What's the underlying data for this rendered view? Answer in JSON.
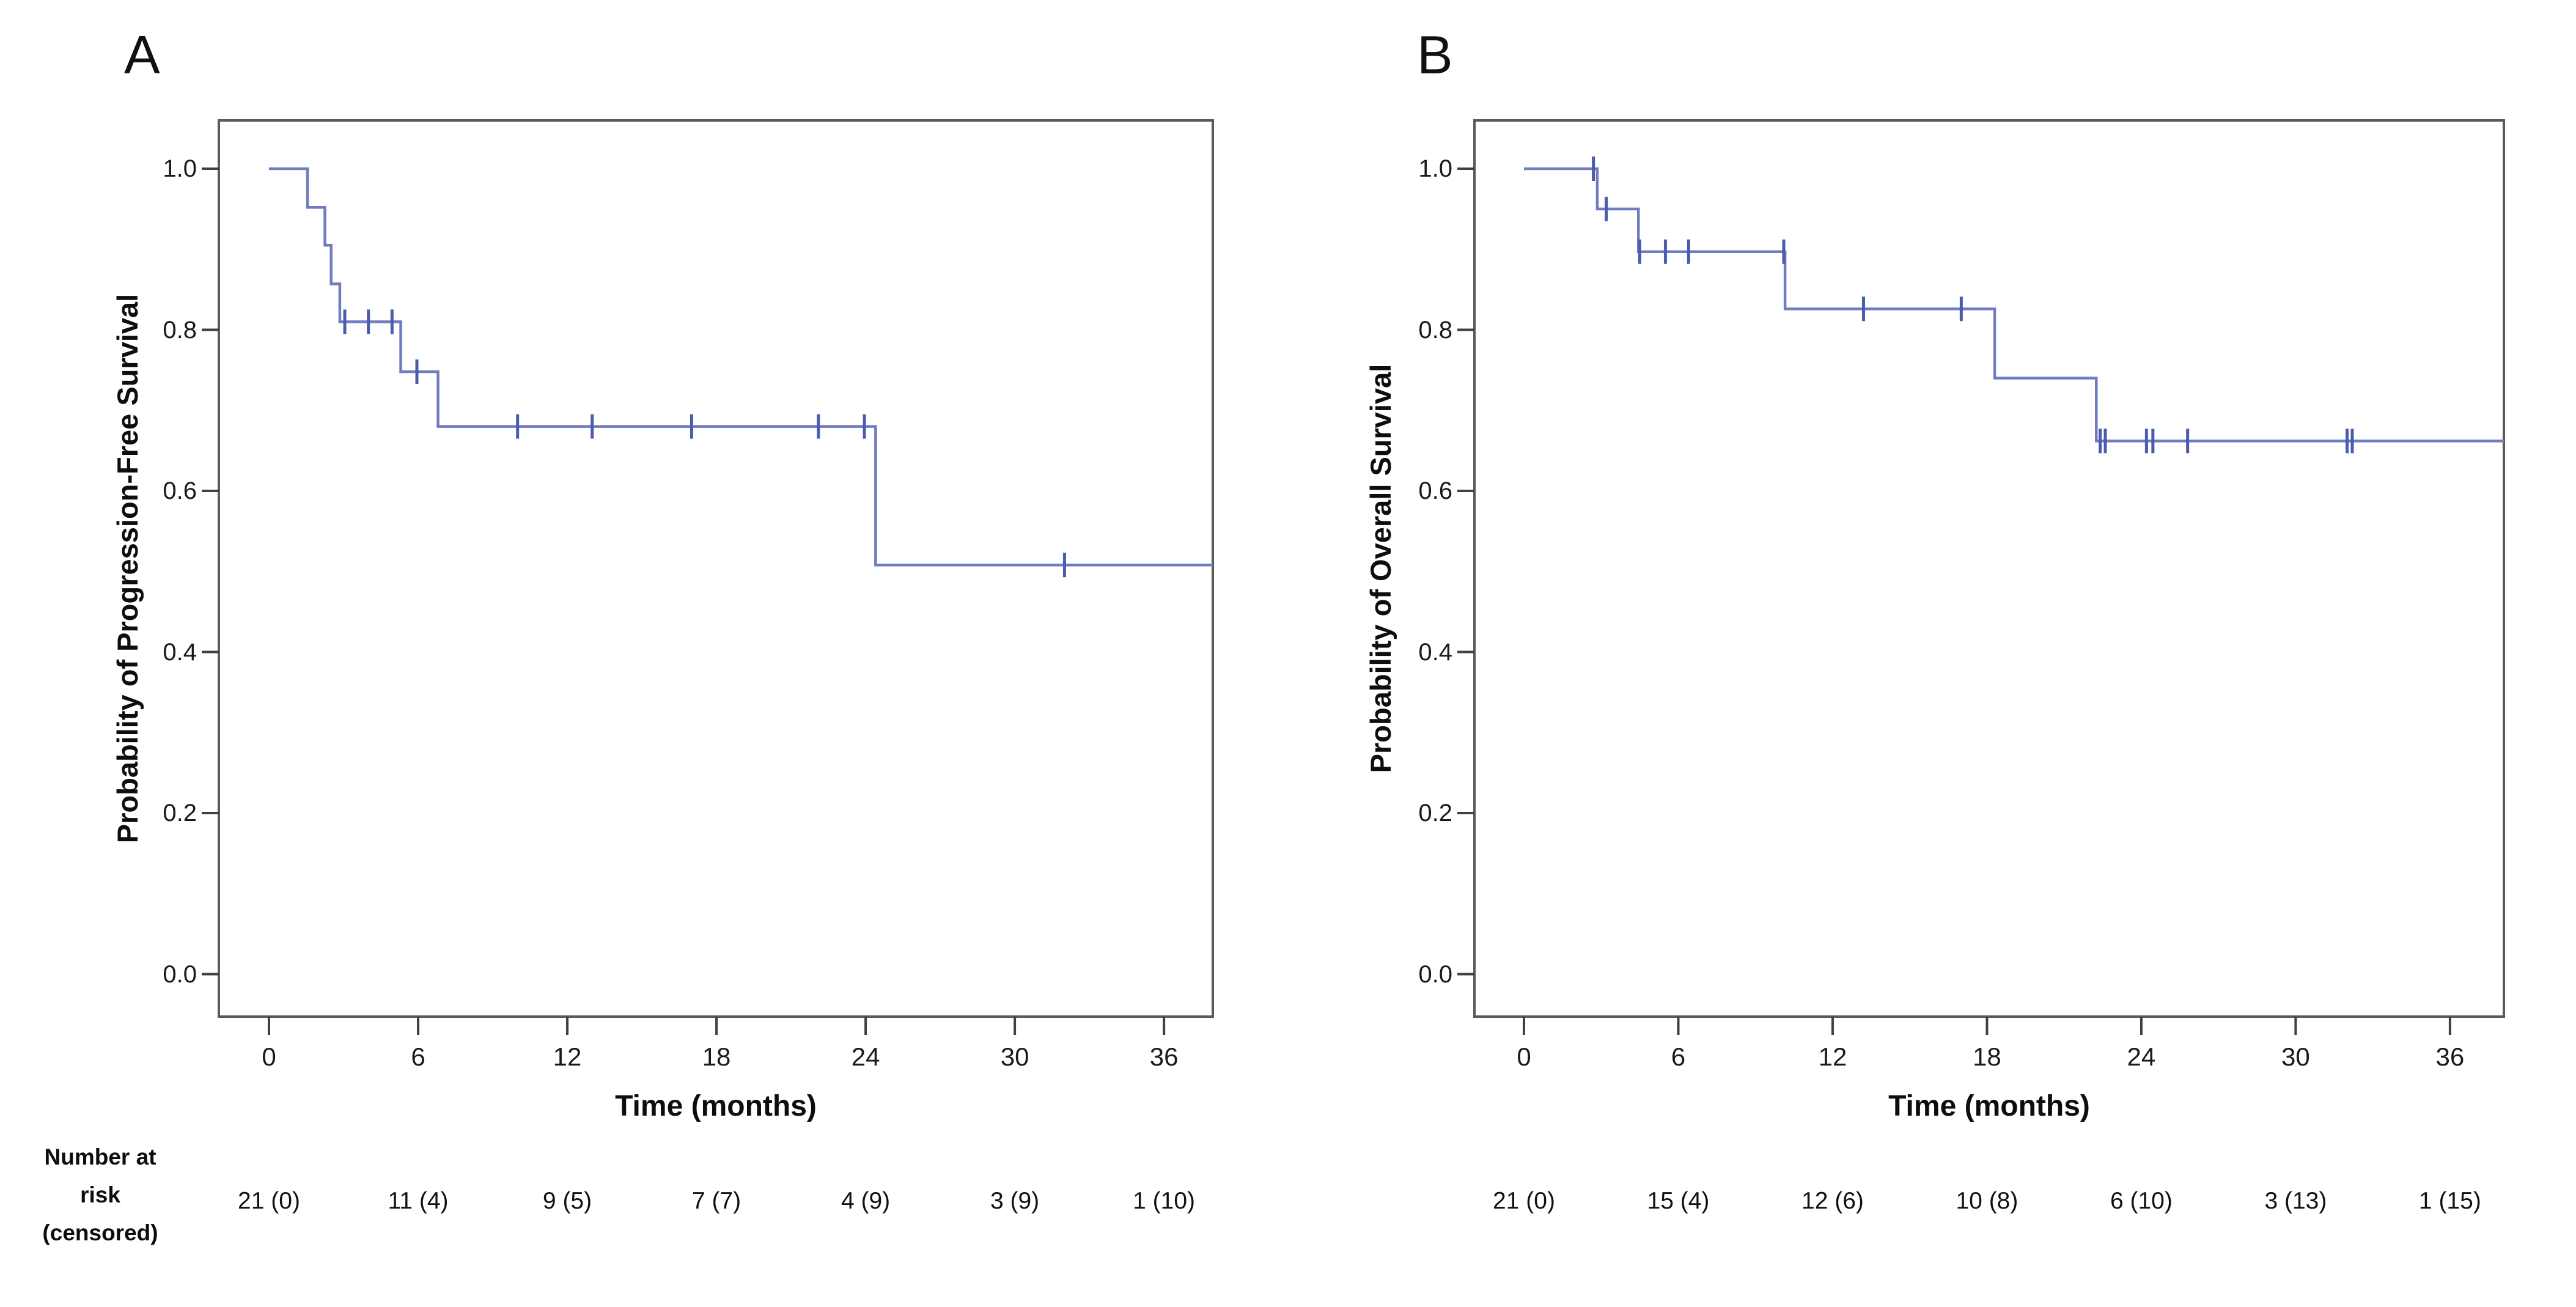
{
  "figure": {
    "risk_label_lines": [
      "Number at",
      "risk",
      "(censored)"
    ],
    "panels": [
      {
        "label": "A",
        "y_axis_title": "Probability of Progression-Free Survival",
        "x_axis_title": "Time (months)",
        "y_tick_labels": [
          "1.0",
          "0.8",
          "0.6",
          "0.4",
          "0.2",
          "0.0"
        ],
        "x_tick_labels": [
          "0",
          "6",
          "12",
          "18",
          "24",
          "30",
          "36"
        ],
        "number_at_risk_labels": [
          "21 (0)",
          "11 (4)",
          "9 (5)",
          "7 (7)",
          "4 (9)",
          "3 (9)",
          "1 (10)"
        ]
      },
      {
        "label": "B",
        "y_axis_title": "Probability of Overall Survival",
        "x_axis_title": "Time (months)",
        "y_tick_labels": [
          "1.0",
          "0.8",
          "0.6",
          "0.4",
          "0.2",
          "0.0"
        ],
        "x_tick_labels": [
          "0",
          "6",
          "12",
          "18",
          "24",
          "30",
          "36"
        ],
        "number_at_risk_labels": [
          "21 (0)",
          "15 (4)",
          "12 (6)",
          "10 (8)",
          "6 (10)",
          "3 (13)",
          "1 (15)"
        ]
      }
    ]
  },
  "chart_data": [
    {
      "type": "line",
      "subtype": "kaplan-meier-step",
      "panel": "A",
      "title": "",
      "xlabel": "Time (months)",
      "ylabel": "Probability of Progression-Free Survival",
      "xlim": [
        0,
        38
      ],
      "ylim": [
        0.0,
        1.0
      ],
      "xticks": [
        0,
        6,
        12,
        18,
        24,
        30,
        36
      ],
      "yticks": [
        1.0,
        0.8,
        0.6,
        0.4,
        0.2,
        0.0
      ],
      "grid": false,
      "legend": "none",
      "line_color": "#6f7cc0",
      "censor_color": "#4b5cad",
      "steps": [
        [
          0,
          1.0
        ],
        [
          1.55,
          0.952
        ],
        [
          2.25,
          0.905
        ],
        [
          2.5,
          0.857
        ],
        [
          2.85,
          0.81
        ],
        [
          5.3,
          0.748
        ],
        [
          6.8,
          0.68
        ],
        [
          24.4,
          0.508
        ]
      ],
      "end_time": 38.2,
      "censor_marks": [
        [
          3.05,
          0.81
        ],
        [
          4.0,
          0.81
        ],
        [
          4.95,
          0.81
        ],
        [
          5.95,
          0.748
        ],
        [
          10.0,
          0.68
        ],
        [
          13.0,
          0.68
        ],
        [
          17.0,
          0.68
        ],
        [
          22.1,
          0.68
        ],
        [
          23.95,
          0.68
        ],
        [
          32.0,
          0.508
        ]
      ],
      "number_at_risk": {
        "times": [
          0,
          6,
          12,
          18,
          24,
          30,
          36
        ],
        "at_risk": [
          21,
          11,
          9,
          7,
          4,
          3,
          1
        ],
        "censored": [
          0,
          4,
          5,
          7,
          9,
          9,
          10
        ]
      }
    },
    {
      "type": "line",
      "subtype": "kaplan-meier-step",
      "panel": "B",
      "title": "",
      "xlabel": "Time (months)",
      "ylabel": "Probability of Overall Survival",
      "xlim": [
        0,
        38
      ],
      "ylim": [
        0.0,
        1.0
      ],
      "xticks": [
        0,
        6,
        12,
        18,
        24,
        30,
        36
      ],
      "yticks": [
        1.0,
        0.8,
        0.6,
        0.4,
        0.2,
        0.0
      ],
      "grid": false,
      "legend": "none",
      "line_color": "#6f7cc0",
      "censor_color": "#4b5cad",
      "steps": [
        [
          0,
          1.0
        ],
        [
          2.85,
          0.95
        ],
        [
          4.45,
          0.897
        ],
        [
          10.15,
          0.826
        ],
        [
          18.3,
          0.74
        ],
        [
          22.25,
          0.662
        ]
      ],
      "end_time": 38.2,
      "censor_marks": [
        [
          2.7,
          1.0
        ],
        [
          3.2,
          0.95
        ],
        [
          4.5,
          0.897
        ],
        [
          5.5,
          0.897
        ],
        [
          6.4,
          0.897
        ],
        [
          10.1,
          0.897
        ],
        [
          13.2,
          0.826
        ],
        [
          17.0,
          0.826
        ],
        [
          22.4,
          0.662
        ],
        [
          22.6,
          0.662
        ],
        [
          24.2,
          0.662
        ],
        [
          24.45,
          0.662
        ],
        [
          25.8,
          0.662
        ],
        [
          32.0,
          0.662
        ],
        [
          32.2,
          0.662
        ]
      ],
      "number_at_risk": {
        "times": [
          0,
          6,
          12,
          18,
          24,
          30,
          36
        ],
        "at_risk": [
          21,
          15,
          12,
          10,
          6,
          3,
          1
        ],
        "censored": [
          0,
          4,
          6,
          8,
          10,
          13,
          15
        ]
      }
    }
  ],
  "colors": {
    "curve": "#6f7cc0",
    "censor_tick": "#4b5cad",
    "plot_border": "#5a5a5a",
    "axis_tick": "#404040",
    "text": "#111111",
    "background": "#ffffff"
  }
}
